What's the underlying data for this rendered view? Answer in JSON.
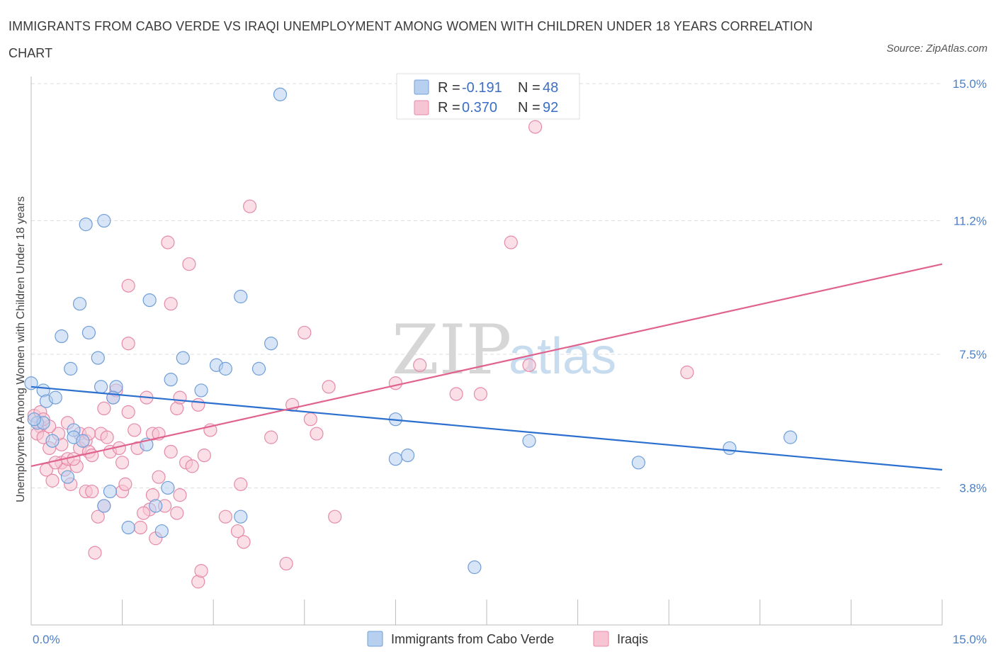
{
  "title": "IMMIGRANTS FROM CABO VERDE VS IRAQI UNEMPLOYMENT AMONG WOMEN WITH CHILDREN UNDER 18 YEARS CORRELATION CHART",
  "source": "Source: ZipAtlas.com",
  "watermark": {
    "zip": "ZIP",
    "atlas": "atlas"
  },
  "legend": {
    "r_label": "R =",
    "n_label": "N =",
    "rows": [
      {
        "r": "-0.191",
        "n": "48"
      },
      {
        "r": "0.370",
        "n": "92"
      }
    ]
  },
  "colors": {
    "blue_fill": "#b8d0f0",
    "blue_stroke": "#6f9ed8",
    "blue_line": "#2b6fcf",
    "pink_fill": "#f7c4d4",
    "pink_stroke": "#e58aa8",
    "pink_line": "#e0628e",
    "grid": "#dddddd"
  },
  "chart_data": {
    "type": "scatter",
    "xlabel": "",
    "ylabel": "Unemployment Among Women with Children Under 18 years",
    "xlim": [
      0,
      15
    ],
    "ylim": [
      0,
      15
    ],
    "x_tick_labels": [
      "0.0%",
      "15.0%"
    ],
    "y_ticks": [
      3.8,
      7.5,
      11.2,
      15.0
    ],
    "y_tick_labels": [
      "3.8%",
      "7.5%",
      "11.2%",
      "15.0%"
    ],
    "grid": true,
    "legend_position": "top-center",
    "series": [
      {
        "name": "Immigrants from Cabo Verde",
        "trend": [
          [
            0,
            6.6
          ],
          [
            15,
            4.3
          ]
        ],
        "points": [
          [
            0.0,
            6.7
          ],
          [
            0.2,
            6.5
          ],
          [
            0.25,
            6.2
          ],
          [
            0.4,
            6.3
          ],
          [
            0.1,
            5.6
          ],
          [
            0.2,
            5.6
          ],
          [
            0.35,
            5.1
          ],
          [
            0.6,
            4.1
          ],
          [
            0.7,
            5.4
          ],
          [
            0.7,
            5.2
          ],
          [
            0.85,
            5.1
          ],
          [
            0.5,
            8.0
          ],
          [
            0.65,
            7.1
          ],
          [
            0.8,
            8.9
          ],
          [
            0.95,
            8.1
          ],
          [
            1.1,
            7.4
          ],
          [
            1.15,
            6.6
          ],
          [
            1.4,
            6.6
          ],
          [
            1.35,
            6.3
          ],
          [
            0.9,
            11.1
          ],
          [
            1.2,
            11.2
          ],
          [
            1.3,
            3.7
          ],
          [
            1.2,
            3.3
          ],
          [
            1.6,
            2.7
          ],
          [
            1.9,
            5.0
          ],
          [
            1.95,
            9.0
          ],
          [
            2.05,
            3.3
          ],
          [
            2.25,
            3.8
          ],
          [
            2.3,
            6.8
          ],
          [
            2.15,
            2.6
          ],
          [
            2.5,
            7.4
          ],
          [
            2.8,
            6.5
          ],
          [
            3.05,
            7.2
          ],
          [
            3.2,
            7.1
          ],
          [
            3.45,
            9.1
          ],
          [
            3.45,
            3.0
          ],
          [
            3.75,
            7.1
          ],
          [
            3.95,
            7.8
          ],
          [
            4.1,
            14.7
          ],
          [
            6.0,
            5.7
          ],
          [
            6.0,
            4.6
          ],
          [
            6.2,
            4.7
          ],
          [
            7.3,
            1.6
          ],
          [
            8.2,
            5.1
          ],
          [
            10.0,
            4.5
          ],
          [
            11.5,
            4.9
          ],
          [
            12.5,
            5.2
          ],
          [
            0.05,
            5.7
          ]
        ]
      },
      {
        "name": "Iraqis",
        "trend": [
          [
            0,
            4.4
          ],
          [
            15,
            10.0
          ]
        ],
        "points": [
          [
            0.05,
            5.8
          ],
          [
            0.15,
            5.5
          ],
          [
            0.1,
            5.3
          ],
          [
            0.2,
            5.2
          ],
          [
            0.3,
            4.9
          ],
          [
            0.25,
            4.3
          ],
          [
            0.35,
            4.0
          ],
          [
            0.5,
            4.5
          ],
          [
            0.55,
            4.3
          ],
          [
            0.5,
            5.0
          ],
          [
            0.6,
            4.6
          ],
          [
            0.65,
            3.9
          ],
          [
            0.75,
            4.4
          ],
          [
            0.8,
            5.3
          ],
          [
            0.8,
            4.9
          ],
          [
            0.9,
            5.1
          ],
          [
            0.9,
            3.7
          ],
          [
            0.95,
            4.8
          ],
          [
            1.0,
            3.7
          ],
          [
            1.1,
            3.0
          ],
          [
            1.15,
            5.3
          ],
          [
            1.2,
            3.3
          ],
          [
            1.2,
            6.0
          ],
          [
            1.3,
            4.8
          ],
          [
            1.35,
            6.3
          ],
          [
            1.4,
            6.5
          ],
          [
            1.45,
            4.9
          ],
          [
            1.5,
            4.5
          ],
          [
            1.5,
            3.7
          ],
          [
            1.6,
            5.9
          ],
          [
            1.55,
            3.9
          ],
          [
            1.6,
            7.8
          ],
          [
            1.6,
            9.4
          ],
          [
            1.7,
            5.4
          ],
          [
            1.75,
            4.9
          ],
          [
            1.8,
            2.7
          ],
          [
            1.9,
            6.3
          ],
          [
            1.95,
            3.2
          ],
          [
            2.0,
            5.3
          ],
          [
            2.05,
            2.4
          ],
          [
            2.1,
            5.3
          ],
          [
            2.1,
            4.1
          ],
          [
            2.2,
            3.3
          ],
          [
            2.25,
            10.6
          ],
          [
            2.3,
            8.9
          ],
          [
            2.3,
            4.8
          ],
          [
            2.4,
            6.0
          ],
          [
            2.4,
            3.1
          ],
          [
            2.45,
            6.3
          ],
          [
            2.55,
            4.5
          ],
          [
            2.6,
            10.0
          ],
          [
            2.65,
            4.4
          ],
          [
            2.75,
            6.1
          ],
          [
            2.75,
            1.2
          ],
          [
            2.8,
            1.5
          ],
          [
            2.85,
            4.7
          ],
          [
            2.95,
            5.4
          ],
          [
            3.2,
            3.0
          ],
          [
            3.4,
            2.6
          ],
          [
            3.45,
            3.9
          ],
          [
            3.5,
            2.3
          ],
          [
            3.6,
            11.6
          ],
          [
            3.95,
            5.2
          ],
          [
            4.2,
            1.7
          ],
          [
            4.3,
            6.1
          ],
          [
            4.5,
            8.1
          ],
          [
            4.6,
            5.7
          ],
          [
            4.7,
            5.3
          ],
          [
            4.9,
            6.6
          ],
          [
            5.0,
            3.0
          ],
          [
            1.05,
            2.0
          ],
          [
            0.4,
            4.5
          ],
          [
            0.6,
            5.6
          ],
          [
            0.7,
            4.6
          ],
          [
            1.0,
            4.7
          ],
          [
            1.25,
            5.2
          ],
          [
            0.95,
            5.3
          ],
          [
            0.45,
            5.3
          ],
          [
            0.3,
            5.5
          ],
          [
            0.15,
            5.9
          ],
          [
            0.2,
            5.7
          ],
          [
            6.0,
            6.7
          ],
          [
            6.4,
            7.2
          ],
          [
            7.0,
            6.4
          ],
          [
            7.4,
            6.4
          ],
          [
            7.9,
            10.6
          ],
          [
            8.2,
            7.2
          ],
          [
            8.3,
            13.8
          ],
          [
            10.8,
            7.0
          ],
          [
            2.45,
            3.6
          ],
          [
            2.0,
            3.6
          ],
          [
            1.85,
            3.1
          ]
        ]
      }
    ]
  },
  "bottom_legend": [
    "Immigrants from Cabo Verde",
    "Iraqis"
  ]
}
